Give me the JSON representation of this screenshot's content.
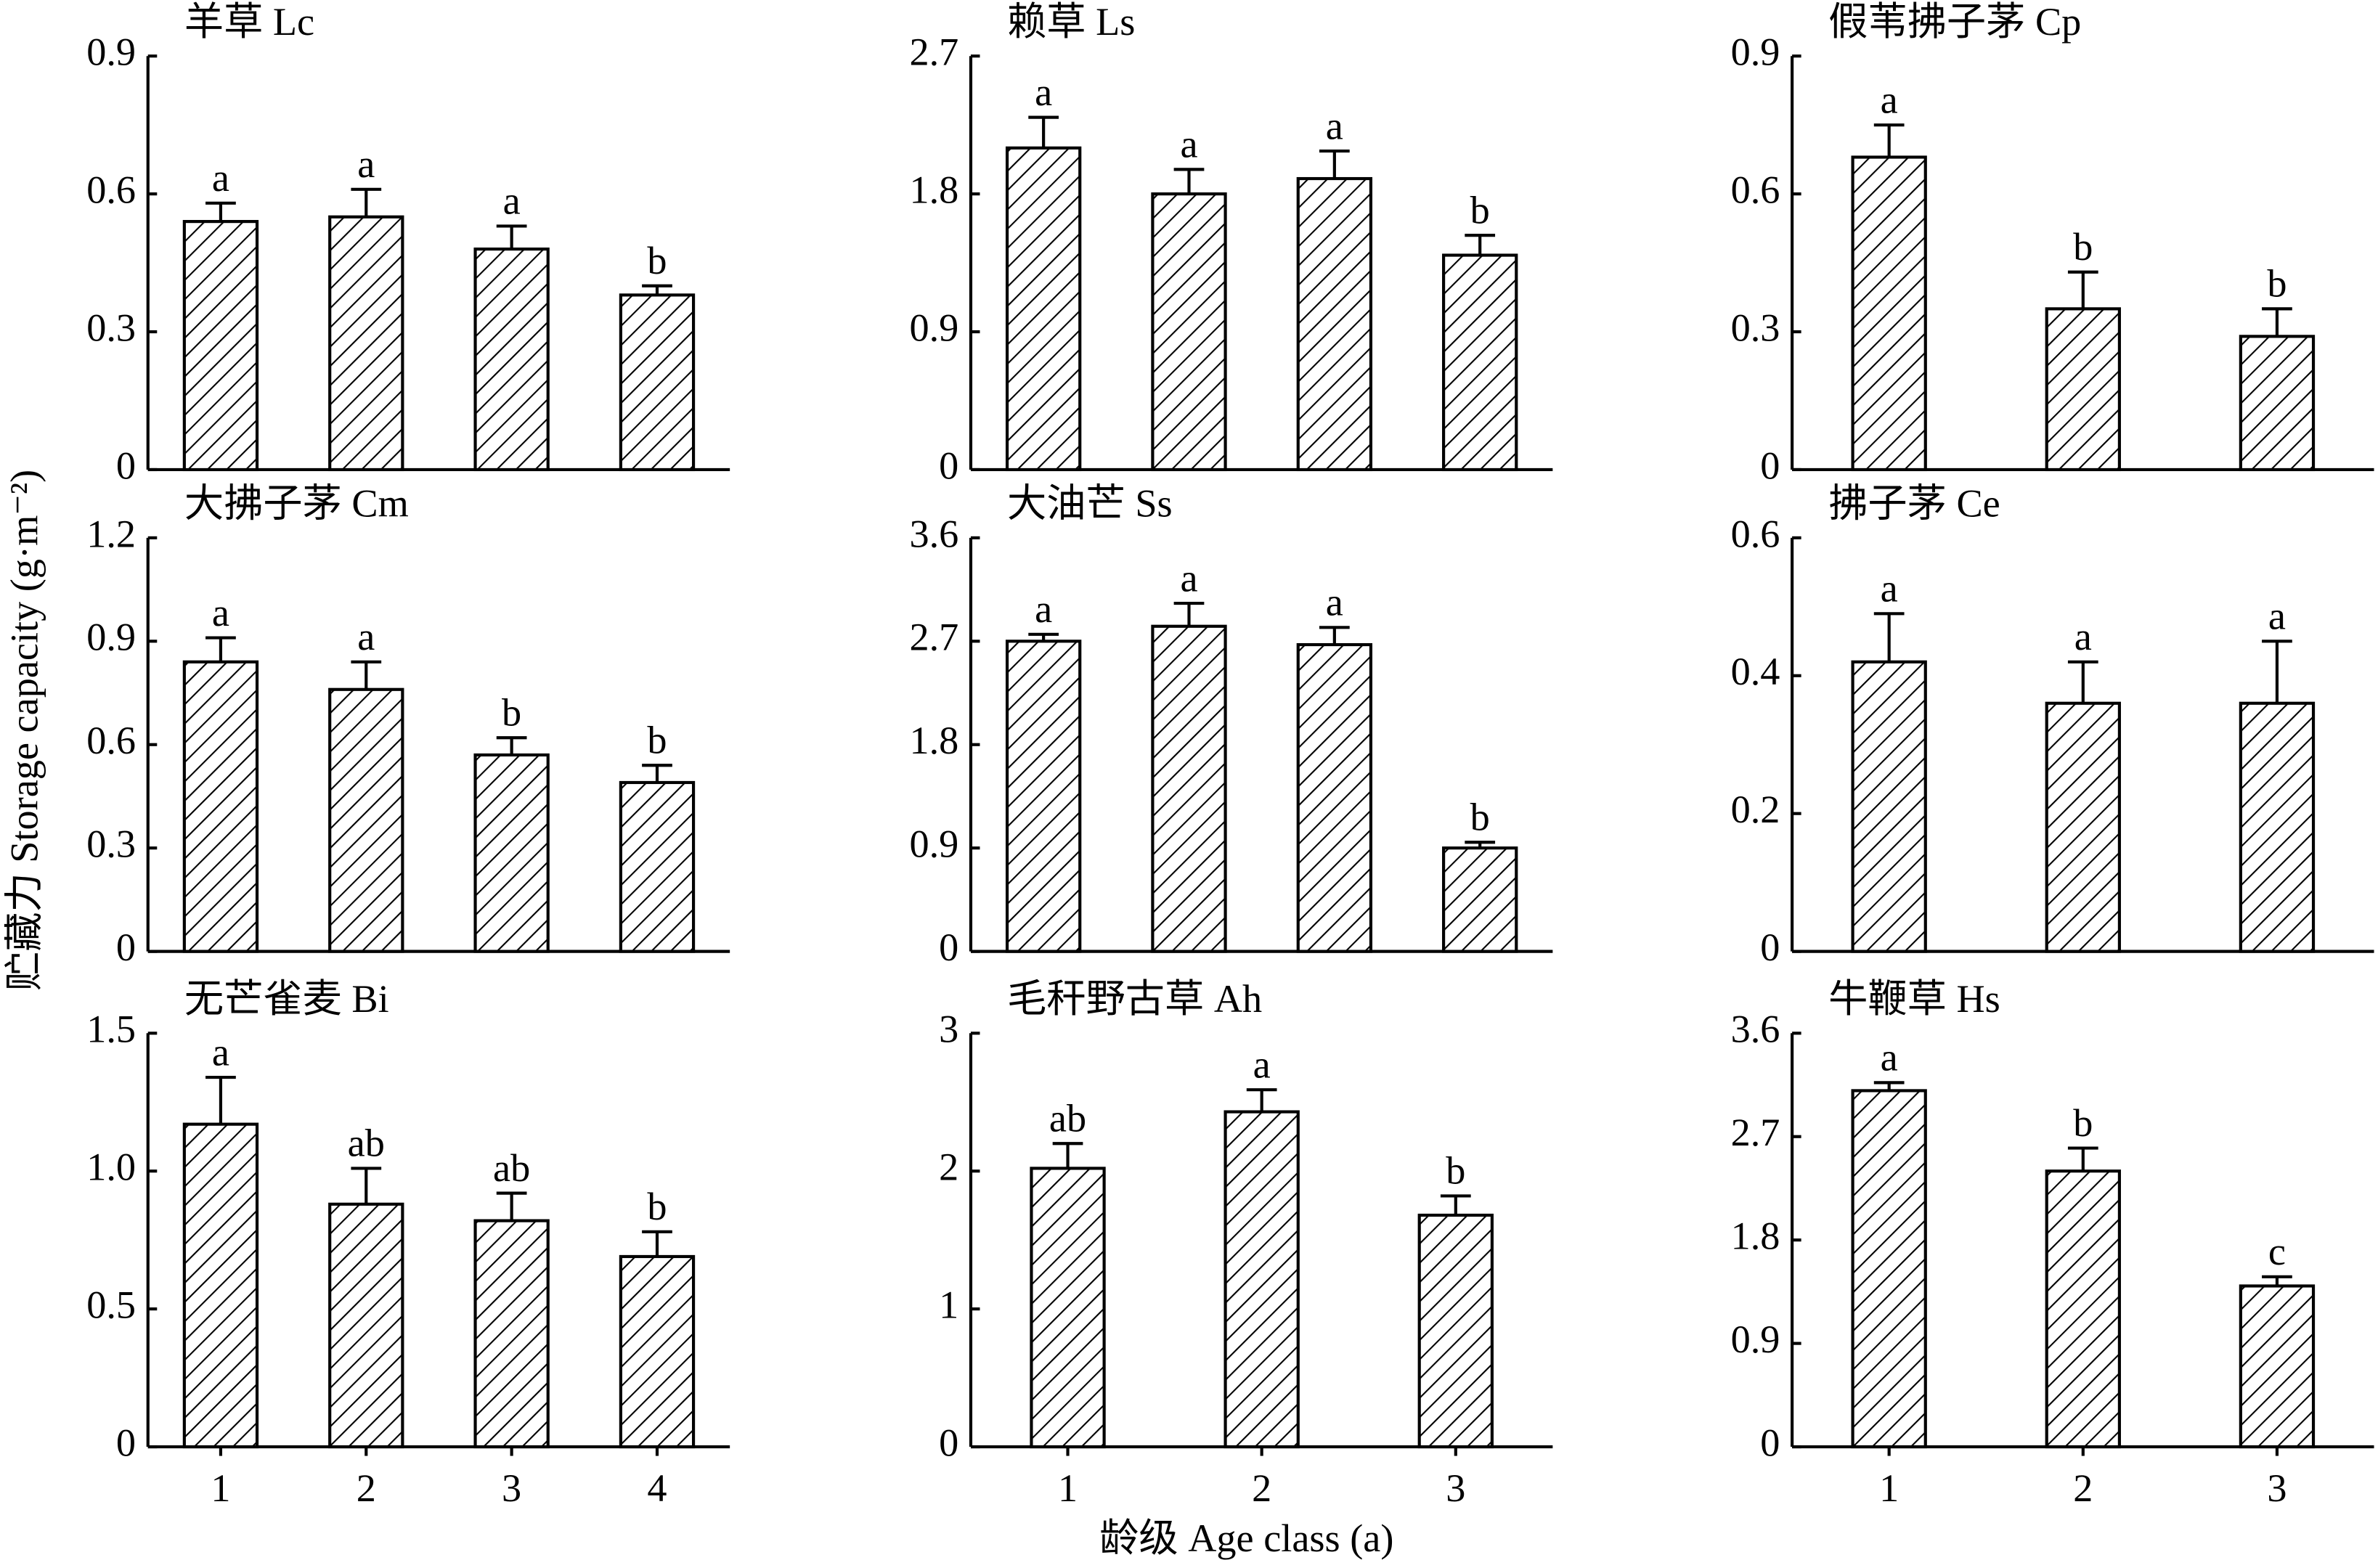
{
  "y_label": "贮藏力 Storage capacity (g·m⁻²)",
  "x_label": "龄级 Age class (a)",
  "chart_data": [
    {
      "type": "bar",
      "title": "羊草 Lc",
      "values": [
        0.54,
        0.55,
        0.48,
        0.38
      ],
      "errors": [
        0.04,
        0.06,
        0.05,
        0.02
      ],
      "annotations": [
        "a",
        "a",
        "a",
        "b"
      ],
      "ylim": [
        0,
        0.9
      ],
      "yticks": [
        0,
        0.3,
        0.6,
        0.9
      ],
      "color": "#000000"
    },
    {
      "type": "bar",
      "title": "赖草 Ls",
      "values": [
        2.1,
        1.8,
        1.9,
        1.4
      ],
      "errors": [
        0.2,
        0.16,
        0.18,
        0.13
      ],
      "annotations": [
        "a",
        "a",
        "a",
        "b"
      ],
      "ylim": [
        0,
        2.7
      ],
      "yticks": [
        0,
        0.9,
        1.8,
        2.7
      ],
      "color": "#000000"
    },
    {
      "type": "bar",
      "title": "假苇拂子茅 Cp",
      "values": [
        0.68,
        0.35,
        0.29
      ],
      "errors": [
        0.07,
        0.08,
        0.06
      ],
      "annotations": [
        "a",
        "b",
        "b"
      ],
      "ylim": [
        0,
        0.9
      ],
      "yticks": [
        0,
        0.3,
        0.6,
        0.9
      ],
      "color": "#000000"
    },
    {
      "type": "bar",
      "title": "大拂子茅 Cm",
      "values": [
        0.84,
        0.76,
        0.57,
        0.49
      ],
      "errors": [
        0.07,
        0.08,
        0.05,
        0.05
      ],
      "annotations": [
        "a",
        "a",
        "b",
        "b"
      ],
      "ylim": [
        0,
        1.2
      ],
      "yticks": [
        0,
        0.3,
        0.6,
        0.9,
        1.2
      ],
      "color": "#000000"
    },
    {
      "type": "bar",
      "title": "大油芒 Ss",
      "values": [
        2.7,
        2.83,
        2.67,
        0.9
      ],
      "errors": [
        0.06,
        0.2,
        0.15,
        0.05
      ],
      "annotations": [
        "a",
        "a",
        "a",
        "b"
      ],
      "ylim": [
        0,
        3.6
      ],
      "yticks": [
        0,
        0.9,
        1.8,
        2.7,
        3.6
      ],
      "color": "#000000"
    },
    {
      "type": "bar",
      "title": "拂子茅 Ce",
      "values": [
        0.42,
        0.36,
        0.36
      ],
      "errors": [
        0.07,
        0.06,
        0.09
      ],
      "annotations": [
        "a",
        "a",
        "a"
      ],
      "ylim": [
        0,
        0.6
      ],
      "yticks": [
        0,
        0.2,
        0.4,
        0.6
      ],
      "color": "#000000"
    },
    {
      "type": "bar",
      "title": "无芒雀麦 Bi",
      "categories": [
        "1",
        "2",
        "3",
        "4"
      ],
      "values": [
        1.17,
        0.88,
        0.82,
        0.69
      ],
      "errors": [
        0.17,
        0.13,
        0.1,
        0.09
      ],
      "annotations": [
        "a",
        "ab",
        "ab",
        "b"
      ],
      "ylim": [
        0,
        1.5
      ],
      "yticks": [
        0,
        0.5,
        {
          "value": 1,
          "label": "1.0"
        },
        1.5
      ],
      "color": "#000000"
    },
    {
      "type": "bar",
      "title": "毛秆野古草 Ah",
      "categories": [
        "1",
        "2",
        "3"
      ],
      "values": [
        2.02,
        2.43,
        1.68
      ],
      "errors": [
        0.18,
        0.16,
        0.14
      ],
      "annotations": [
        "ab",
        "a",
        "b"
      ],
      "ylim": [
        0,
        3
      ],
      "yticks": [
        0,
        1,
        2,
        3
      ],
      "color": "#000000"
    },
    {
      "type": "bar",
      "title": "牛鞭草 Hs",
      "categories": [
        "1",
        "2",
        "3"
      ],
      "values": [
        3.1,
        2.4,
        1.4
      ],
      "errors": [
        0.07,
        0.2,
        0.08
      ],
      "annotations": [
        "a",
        "b",
        "c"
      ],
      "ylim": [
        0,
        3.6
      ],
      "yticks": [
        0,
        0.9,
        1.8,
        2.7,
        3.6
      ],
      "color": "#000000"
    }
  ]
}
